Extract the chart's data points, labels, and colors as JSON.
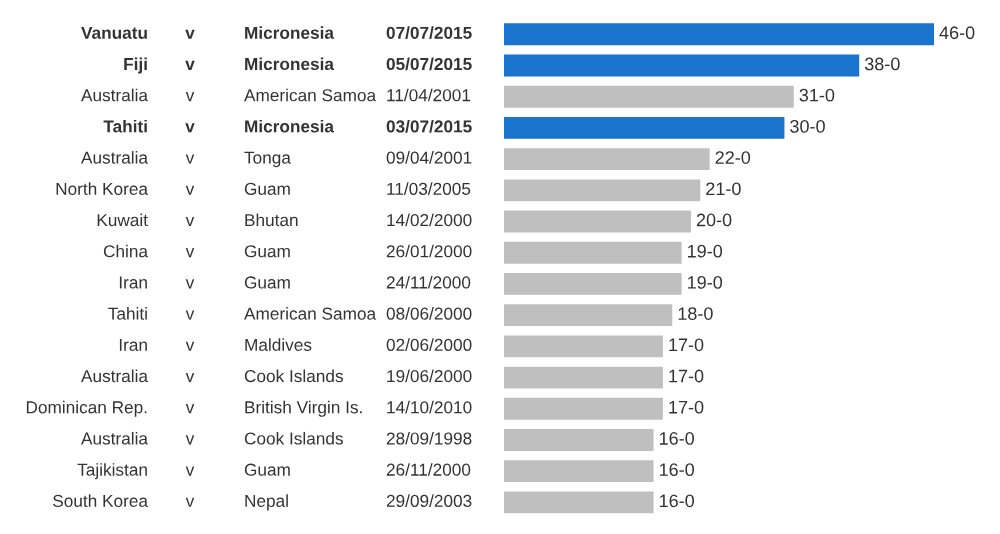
{
  "chart_data": {
    "type": "bar",
    "orientation": "horizontal",
    "categories": [
      "Vanuatu",
      "Fiji",
      "Australia",
      "Tahiti",
      "Australia",
      "North Korea",
      "Kuwait",
      "China",
      "Iran",
      "Tahiti",
      "Iran",
      "Australia",
      "Dominican Rep.",
      "Australia",
      "Tajikistan",
      "South Korea"
    ],
    "values": [
      46,
      38,
      31,
      30,
      22,
      21,
      20,
      19,
      19,
      18,
      17,
      17,
      17,
      16,
      16,
      16
    ],
    "value_labels": [
      "46-0",
      "38-0",
      "31-0",
      "30-0",
      "22-0",
      "21-0",
      "20-0",
      "19-0",
      "19-0",
      "18-0",
      "17-0",
      "17-0",
      "17-0",
      "16-0",
      "16-0",
      "16-0"
    ],
    "colors": [
      "#1a73cc",
      "#1a73cc",
      "#bfbfbf",
      "#1a73cc",
      "#bfbfbf",
      "#bfbfbf",
      "#bfbfbf",
      "#bfbfbf",
      "#bfbfbf",
      "#bfbfbf",
      "#bfbfbf",
      "#bfbfbf",
      "#bfbfbf",
      "#bfbfbf",
      "#bfbfbf",
      "#bfbfbf"
    ],
    "annotations": [
      "v",
      "Micronesia",
      "07/07/2015",
      "v",
      "Micronesia",
      "05/07/2015",
      "v",
      "American Samoa",
      "11/04/2001",
      "v",
      "Micronesia",
      "03/07/2015",
      "v",
      "Tonga",
      "09/04/2001",
      "v",
      "Guam",
      "11/03/2005",
      "v",
      "Bhutan",
      "14/02/2000",
      "v",
      "Guam",
      "26/01/2000",
      "v",
      "Guam",
      "24/11/2000",
      "v",
      "American Samoa",
      "08/06/2000",
      "v",
      "Maldives",
      "02/06/2000",
      "v",
      "Cook Islands",
      "19/06/2000",
      "v",
      "British Virgin Is.",
      "14/10/2010",
      "v",
      "Cook Islands",
      "28/09/1998",
      "v",
      "Guam",
      "26/11/2000",
      "v",
      "Nepal",
      "29/09/2003"
    ]
  }
}
